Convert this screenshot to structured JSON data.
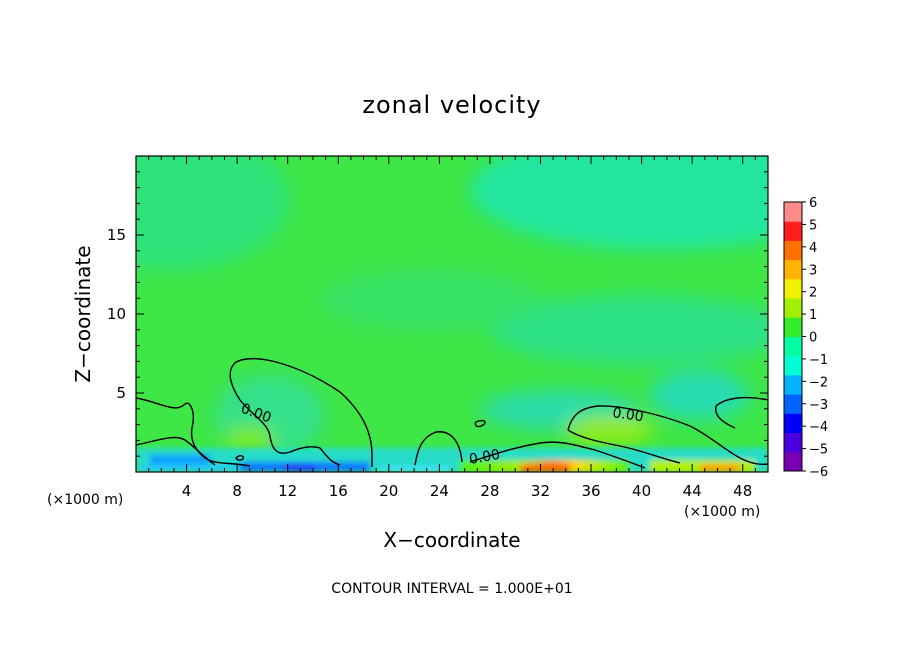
{
  "chart_data": {
    "type": "heatmap",
    "title": "zonal velocity",
    "xlabel": "X−coordinate",
    "ylabel": "Z−coordinate",
    "x_unit_label": "(×1000 m)",
    "z_unit_label": "(×1000 m)",
    "xlim": [
      0,
      50
    ],
    "ylim": [
      0,
      20
    ],
    "x_ticks": [
      4,
      8,
      12,
      16,
      20,
      24,
      28,
      32,
      36,
      40,
      44,
      48
    ],
    "x_tick_labels": [
      "4",
      "8",
      "12",
      "16",
      "20",
      "24",
      "28",
      "32",
      "36",
      "40",
      "44",
      "48"
    ],
    "y_ticks": [
      5,
      10,
      15
    ],
    "y_tick_labels": [
      "5",
      "10",
      "15"
    ],
    "colorbar": {
      "min": -6,
      "max": 6,
      "ticks": [
        6,
        5,
        4,
        3,
        2,
        1,
        0,
        -1,
        -2,
        -3,
        -4,
        -5,
        -6
      ],
      "tick_labels": [
        "6",
        "5",
        "4",
        "3",
        "2",
        "1",
        "0",
        "−1",
        "−2",
        "−3",
        "−4",
        "−5",
        "−6"
      ],
      "colors": [
        "#7a00b4",
        "#4a00e0",
        "#0000ff",
        "#0064ff",
        "#00b4ff",
        "#00ffd2",
        "#00ffa0",
        "#34ec2c",
        "#a0f000",
        "#f0f000",
        "#ffb400",
        "#ff7000",
        "#ff1e1e",
        "#ff8a8a"
      ]
    },
    "contours": [
      {
        "level": 0.0,
        "label": "0.00",
        "label_positions": [
          [
            9.5,
            4.0
          ],
          [
            40.0,
            3.5
          ],
          [
            27.5,
            0.8
          ]
        ]
      }
    ],
    "footer": "CONTOUR INTERVAL = 1.000E+01",
    "grid": false,
    "legend": "colorbar-right"
  }
}
